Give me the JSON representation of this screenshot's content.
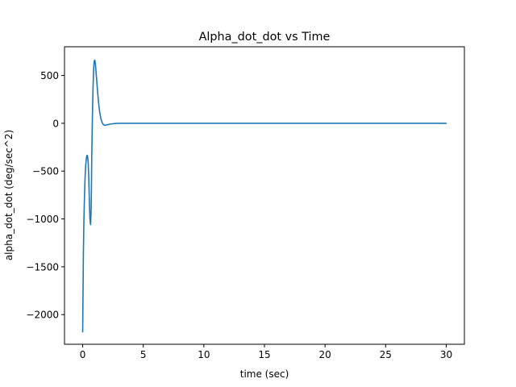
{
  "chart_data": {
    "type": "line",
    "title": "Alpha_dot_dot vs Time",
    "xlabel": "time (sec)",
    "ylabel": "alpha_dot_dot (deg/sec^2)",
    "xlim": [
      -1.5,
      31.5
    ],
    "ylim": [
      -2310,
      800
    ],
    "xticks": [
      0,
      5,
      10,
      15,
      20,
      25,
      30
    ],
    "xtick_labels": [
      "0",
      "5",
      "10",
      "15",
      "20",
      "25",
      "30"
    ],
    "yticks": [
      500,
      0,
      -500,
      -1000,
      -1500,
      -2000
    ],
    "ytick_labels": [
      "500",
      "0",
      "−500",
      "−1000",
      "−1500",
      "−2000"
    ],
    "grid": false,
    "series": [
      {
        "name": "alpha_dot_dot",
        "color": "#1f77b4",
        "x": [
          0,
          0.03,
          0.06,
          0.1,
          0.15,
          0.2,
          0.25,
          0.3,
          0.35,
          0.4,
          0.45,
          0.5,
          0.55,
          0.6,
          0.65,
          0.7,
          0.72,
          0.75,
          0.8,
          0.85,
          0.9,
          0.95,
          1.0,
          1.05,
          1.1,
          1.2,
          1.3,
          1.4,
          1.5,
          1.6,
          1.7,
          1.8,
          1.9,
          2.0,
          2.2,
          2.4,
          2.6,
          2.8,
          3.0,
          3.5,
          4.0,
          5.0,
          10,
          15,
          20,
          25,
          30
        ],
        "y": [
          -2180,
          -1750,
          -1350,
          -1020,
          -760,
          -560,
          -440,
          -370,
          -335,
          -340,
          -400,
          -560,
          -800,
          -1000,
          -1060,
          -900,
          -700,
          -350,
          50,
          350,
          560,
          650,
          660,
          620,
          540,
          380,
          230,
          120,
          50,
          10,
          -12,
          -20,
          -20,
          -16,
          -10,
          -6,
          -3,
          -1,
          0,
          0,
          0,
          0,
          0,
          0,
          0,
          0,
          0
        ]
      }
    ]
  }
}
